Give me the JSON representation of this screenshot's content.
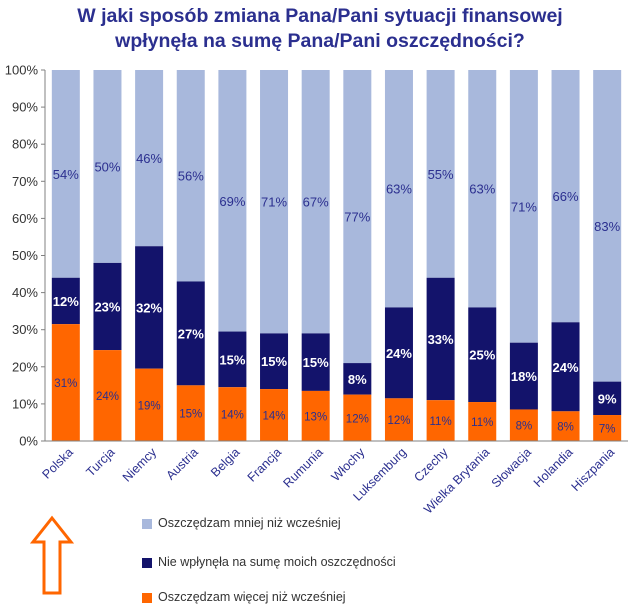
{
  "title_line1": "W jaki sposób zmiana Pana/Pani sytuacji finansowej",
  "title_line2": "wpłynęła na sumę Pana/Pani oszczędności?",
  "colors": {
    "title": "#2b2f8f",
    "less": "#a8b8dc",
    "unaffected": "#13136b",
    "more": "#ff6600",
    "arrow": "#ff6600"
  },
  "highlight_arrow": "up-arrow-outline-icon",
  "chart_data": {
    "type": "stacked-bar-100",
    "title": "W jaki sposób zmiana Pana/Pani sytuacji finansowej wpłynęła na sumę Pana/Pani oszczędności?",
    "categories": [
      "Polska",
      "Turcja",
      "Niemcy",
      "Austria",
      "Belgia",
      "Francja",
      "Rumunia",
      "Włochy",
      "Luksemburg",
      "Czechy",
      "Wielka Brytania",
      "Słowacja",
      "Holandia",
      "Hiszpania"
    ],
    "series": [
      {
        "key": "more",
        "name": "Oszczędzam więcej niż wcześniej",
        "values": [
          31,
          24,
          19,
          15,
          14,
          14,
          13,
          12,
          12,
          11,
          11,
          8,
          8,
          7
        ]
      },
      {
        "key": "unaffected",
        "name": "Nie wpłynęła na sumę moich oszczędności",
        "values": [
          12,
          23,
          32,
          27,
          15,
          15,
          15,
          8,
          24,
          33,
          25,
          18,
          24,
          9
        ]
      },
      {
        "key": "less",
        "name": "Oszczędzam mniej niż wcześniej",
        "values": [
          54,
          50,
          46,
          56,
          69,
          71,
          67,
          77,
          63,
          55,
          63,
          71,
          66,
          83
        ]
      }
    ],
    "plotted_heights": {
      "more": [
        31.5,
        24.5,
        19.5,
        15,
        14.5,
        14,
        13.5,
        12.5,
        11.5,
        11,
        10.5,
        8.5,
        8,
        7
      ],
      "unaffected": [
        12.5,
        23.5,
        33,
        28,
        15,
        15,
        15.5,
        8.5,
        24.5,
        33,
        25.5,
        18,
        24,
        9
      ]
    },
    "yticks": [
      "0%",
      "10%",
      "20%",
      "30%",
      "40%",
      "50%",
      "60%",
      "70%",
      "80%",
      "90%",
      "100%"
    ],
    "ylim": [
      0,
      100
    ],
    "legend": [
      {
        "key": "less",
        "label": "Oszczędzam mniej niż wcześniej"
      },
      {
        "key": "unaffected",
        "label": "Nie wpłynęła na sumę moich oszczędności"
      },
      {
        "key": "more",
        "label": "Oszczędzam więcej niż wcześniej"
      }
    ]
  }
}
